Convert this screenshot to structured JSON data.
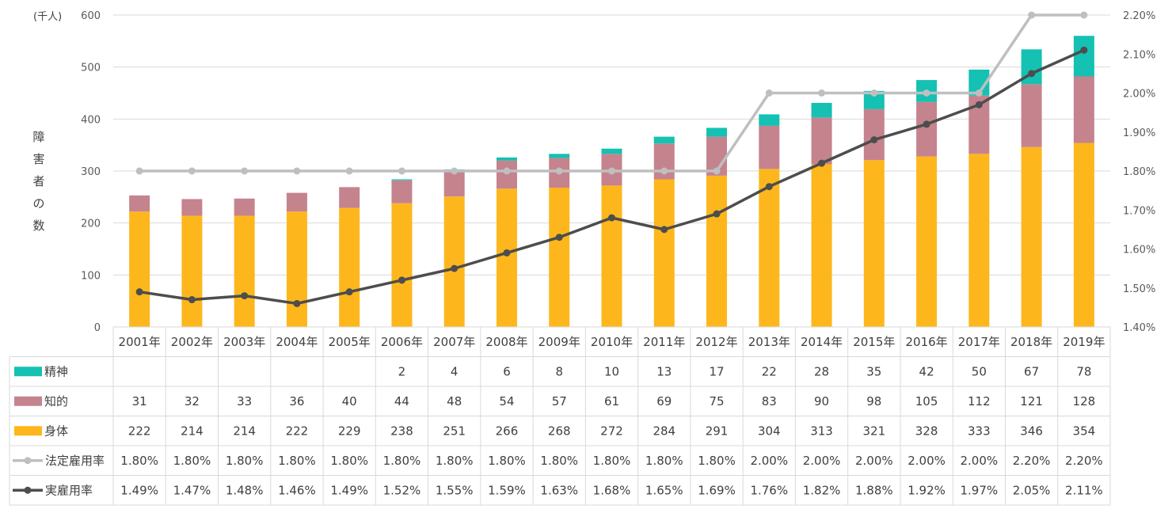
{
  "chart_data": {
    "type": "bar",
    "stacked": true,
    "unit_label": "(千人)",
    "ylabel": "障害者の数",
    "ylim": [
      0,
      600
    ],
    "y_ticks": [
      "0",
      "100",
      "200",
      "300",
      "400",
      "500",
      "600"
    ],
    "y2lim": [
      1.4,
      2.2
    ],
    "y2_ticks": [
      "1.40%",
      "1.50%",
      "1.60%",
      "1.70%",
      "1.80%",
      "1.90%",
      "2.00%",
      "2.10%",
      "2.20%"
    ],
    "grid": true,
    "categories": [
      "2001年",
      "2002年",
      "2003年",
      "2004年",
      "2005年",
      "2006年",
      "2007年",
      "2008年",
      "2009年",
      "2010年",
      "2011年",
      "2012年",
      "2013年",
      "2014年",
      "2015年",
      "2016年",
      "2017年",
      "2018年",
      "2019年"
    ],
    "series": [
      {
        "name": "精神",
        "type": "bar",
        "color": "#14C1B2",
        "values": [
          null,
          null,
          null,
          null,
          null,
          2,
          4,
          6,
          8,
          10,
          13,
          17,
          22,
          28,
          35,
          42,
          50,
          67,
          78
        ],
        "labels": [
          "",
          "",
          "",
          "",
          "",
          "2",
          "4",
          "6",
          "8",
          "10",
          "13",
          "17",
          "22",
          "28",
          "35",
          "42",
          "50",
          "67",
          "78"
        ]
      },
      {
        "name": "知的",
        "type": "bar",
        "color": "#C5838E",
        "values": [
          31,
          32,
          33,
          36,
          40,
          44,
          48,
          54,
          57,
          61,
          69,
          75,
          83,
          90,
          98,
          105,
          112,
          121,
          128
        ],
        "labels": [
          "31",
          "32",
          "33",
          "36",
          "40",
          "44",
          "48",
          "54",
          "57",
          "61",
          "69",
          "75",
          "83",
          "90",
          "98",
          "105",
          "112",
          "121",
          "128"
        ]
      },
      {
        "name": "身体",
        "type": "bar",
        "color": "#FDB71C",
        "values": [
          222,
          214,
          214,
          222,
          229,
          238,
          251,
          266,
          268,
          272,
          284,
          291,
          304,
          313,
          321,
          328,
          333,
          346,
          354
        ],
        "labels": [
          "222",
          "214",
          "214",
          "222",
          "229",
          "238",
          "251",
          "266",
          "268",
          "272",
          "284",
          "291",
          "304",
          "313",
          "321",
          "328",
          "333",
          "346",
          "354"
        ]
      },
      {
        "name": "法定雇用率",
        "type": "line",
        "axis": "right",
        "color": "#BFBFBF",
        "values": [
          1.8,
          1.8,
          1.8,
          1.8,
          1.8,
          1.8,
          1.8,
          1.8,
          1.8,
          1.8,
          1.8,
          1.8,
          2.0,
          2.0,
          2.0,
          2.0,
          2.0,
          2.2,
          2.2
        ],
        "labels": [
          "1.80%",
          "1.80%",
          "1.80%",
          "1.80%",
          "1.80%",
          "1.80%",
          "1.80%",
          "1.80%",
          "1.80%",
          "1.80%",
          "1.80%",
          "1.80%",
          "2.00%",
          "2.00%",
          "2.00%",
          "2.00%",
          "2.00%",
          "2.20%",
          "2.20%"
        ]
      },
      {
        "name": "実雇用率",
        "type": "line",
        "axis": "right",
        "color": "#4D4D4D",
        "values": [
          1.49,
          1.47,
          1.48,
          1.46,
          1.49,
          1.52,
          1.55,
          1.59,
          1.63,
          1.68,
          1.65,
          1.69,
          1.76,
          1.82,
          1.88,
          1.92,
          1.97,
          2.05,
          2.11
        ],
        "labels": [
          "1.49%",
          "1.47%",
          "1.48%",
          "1.46%",
          "1.49%",
          "1.52%",
          "1.55%",
          "1.59%",
          "1.63%",
          "1.68%",
          "1.65%",
          "1.69%",
          "1.76%",
          "1.82%",
          "1.88%",
          "1.92%",
          "1.97%",
          "2.05%",
          "2.11%"
        ]
      }
    ]
  }
}
